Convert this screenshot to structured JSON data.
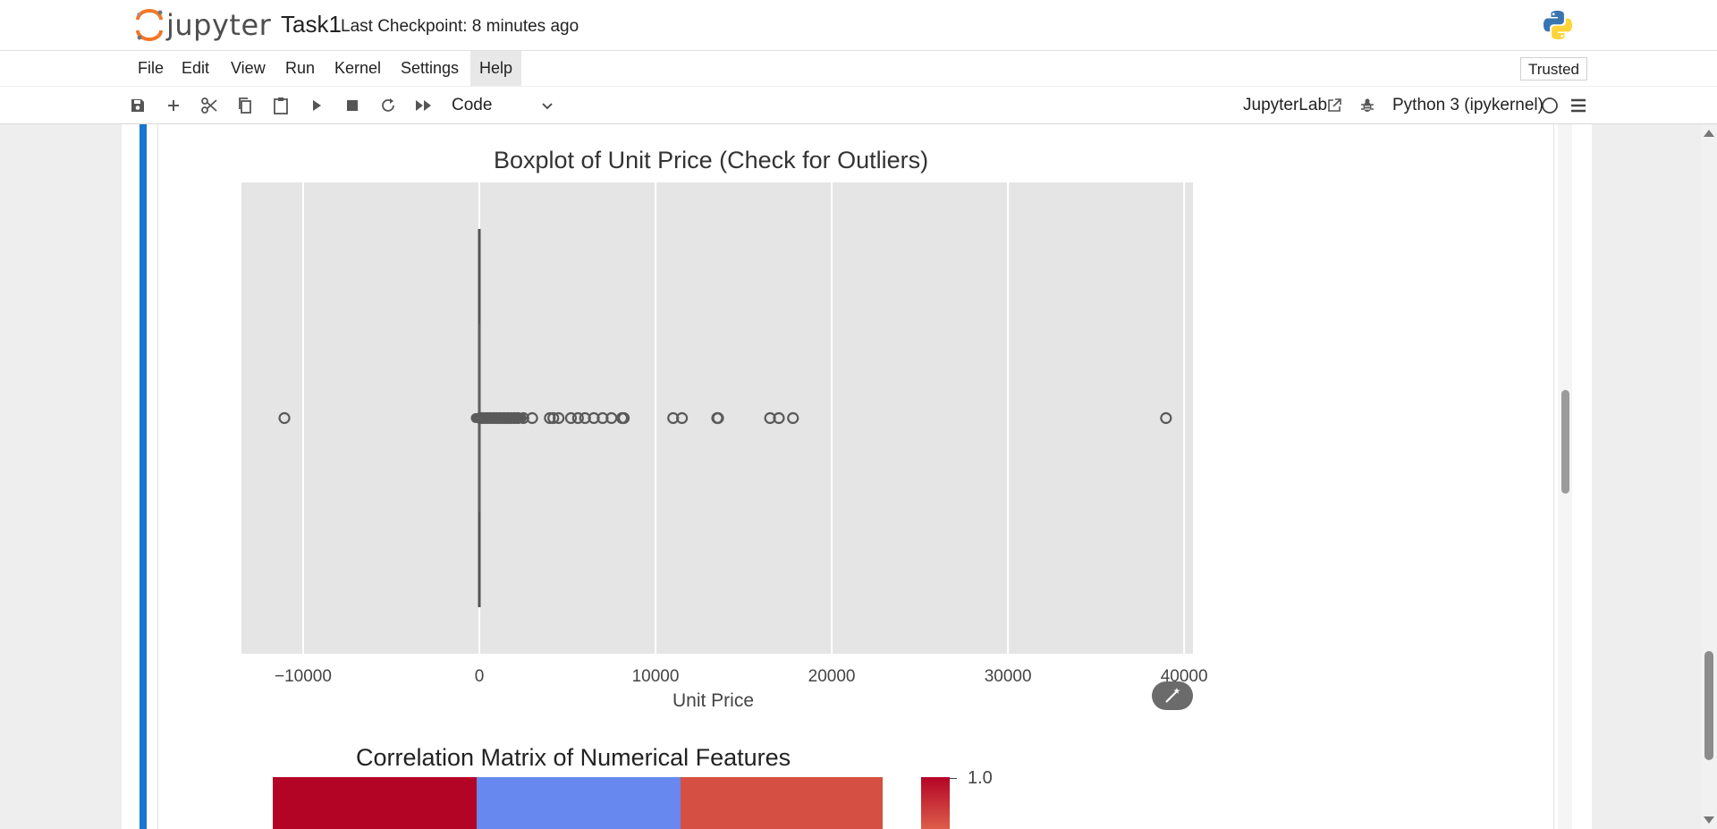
{
  "header": {
    "logo_text": "jupyter",
    "notebook_title": "Task1",
    "checkpoint": "Last Checkpoint: 8 minutes ago",
    "python_logo_icon": "python-logo-icon"
  },
  "menu": {
    "items": [
      "File",
      "Edit",
      "View",
      "Run",
      "Kernel",
      "Settings",
      "Help"
    ],
    "active": "Help",
    "trusted_label": "Trusted"
  },
  "toolbar": {
    "icons": [
      "save-icon",
      "plus-icon",
      "cut-icon",
      "copy-icon",
      "paste-icon",
      "run-icon",
      "stop-icon",
      "restart-icon",
      "fast-forward-icon"
    ],
    "cell_type": "Code",
    "jupyterlab_label": "JupyterLab",
    "kernel_name": "Python 3 (ipykernel)"
  },
  "output": {
    "wand_icon": "magic-wand-icon",
    "chart_data": [
      {
        "type": "boxplot",
        "title": "Boxplot of Unit Price (Check for Outliers)",
        "xlabel": "Unit Price",
        "ylabel": "",
        "xlim": [
          -13500,
          40500
        ],
        "xticks": [
          -10000,
          0,
          10000,
          20000,
          30000,
          40000
        ],
        "xtick_labels": [
          "−10000",
          "0",
          "10000",
          "20000",
          "30000",
          "40000"
        ],
        "grid": true,
        "box": {
          "q1": 0,
          "median": 5,
          "q3": 10,
          "whisker_low": 0,
          "whisker_high": 20
        },
        "outliers": [
          -11062,
          50,
          200,
          400,
          600,
          800,
          1000,
          1200,
          1400,
          1600,
          1800,
          2000,
          2200,
          2500,
          3000,
          4000,
          4200,
          4500,
          5200,
          5600,
          6000,
          6500,
          7000,
          7500,
          8100,
          8200,
          11000,
          11500,
          13500,
          13550,
          16500,
          17000,
          17800,
          38970
        ]
      },
      {
        "type": "heatmap",
        "title": "Correlation Matrix of Numerical Features",
        "colorbar_max_label": "1.0",
        "visible_row_colors": [
          "#b40426",
          "#6788ee",
          "#d55042"
        ]
      }
    ]
  }
}
